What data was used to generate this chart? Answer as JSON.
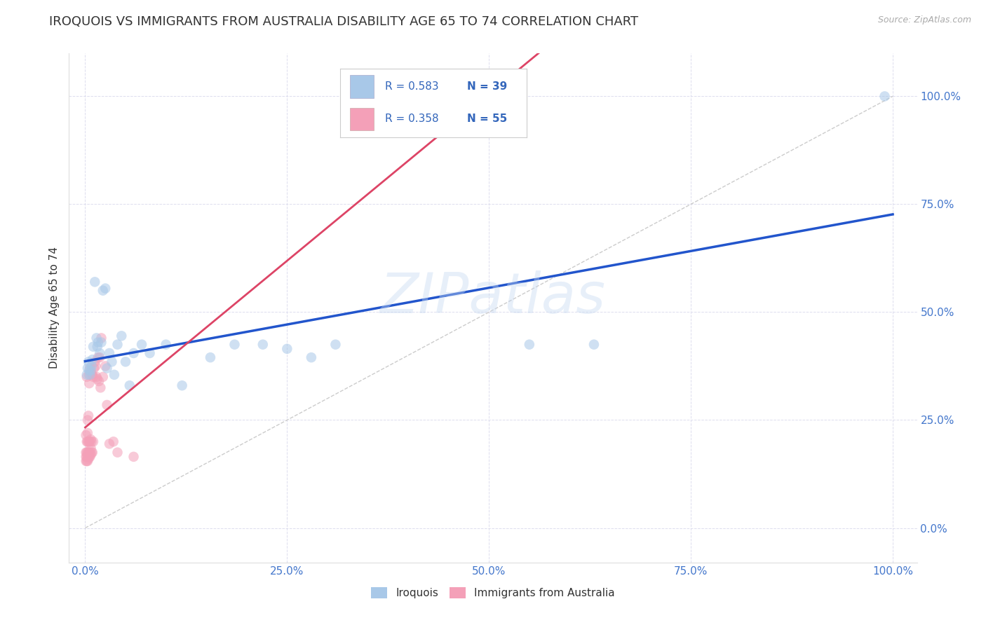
{
  "title": "IROQUOIS VS IMMIGRANTS FROM AUSTRALIA DISABILITY AGE 65 TO 74 CORRELATION CHART",
  "source": "Source: ZipAtlas.com",
  "ylabel": "Disability Age 65 to 74",
  "background_color": "#ffffff",
  "watermark": "ZIPatlas",
  "legend_label1": "Iroquois",
  "legend_label2": "Immigrants from Australia",
  "iroquois_color": "#a8c8e8",
  "immigrants_color": "#f4a0b8",
  "line1_color": "#2255cc",
  "line2_color": "#dd4466",
  "diag_color": "#cccccc",
  "iroquois_x": [
    0.002,
    0.003,
    0.004,
    0.005,
    0.006,
    0.007,
    0.008,
    0.009,
    0.01,
    0.012,
    0.014,
    0.015,
    0.016,
    0.018,
    0.02,
    0.022,
    0.025,
    0.027,
    0.03,
    0.033,
    0.036,
    0.04,
    0.045,
    0.05,
    0.055,
    0.06,
    0.07,
    0.08,
    0.1,
    0.12,
    0.155,
    0.185,
    0.22,
    0.25,
    0.28,
    0.31,
    0.55,
    0.63,
    0.99
  ],
  "iroquois_y": [
    0.355,
    0.37,
    0.385,
    0.365,
    0.355,
    0.365,
    0.375,
    0.39,
    0.42,
    0.57,
    0.44,
    0.42,
    0.43,
    0.405,
    0.43,
    0.55,
    0.555,
    0.37,
    0.405,
    0.385,
    0.355,
    0.425,
    0.445,
    0.385,
    0.33,
    0.405,
    0.425,
    0.405,
    0.425,
    0.33,
    0.395,
    0.425,
    0.425,
    0.415,
    0.395,
    0.425,
    0.425,
    0.425,
    1.0
  ],
  "immigrants_x": [
    0.001,
    0.001,
    0.001,
    0.001,
    0.002,
    0.002,
    0.002,
    0.002,
    0.002,
    0.003,
    0.003,
    0.003,
    0.003,
    0.003,
    0.003,
    0.004,
    0.004,
    0.004,
    0.004,
    0.005,
    0.005,
    0.005,
    0.005,
    0.005,
    0.006,
    0.006,
    0.006,
    0.006,
    0.007,
    0.007,
    0.007,
    0.007,
    0.008,
    0.008,
    0.009,
    0.009,
    0.01,
    0.01,
    0.011,
    0.012,
    0.013,
    0.014,
    0.015,
    0.016,
    0.017,
    0.018,
    0.019,
    0.02,
    0.022,
    0.025,
    0.027,
    0.03,
    0.035,
    0.04,
    0.06
  ],
  "immigrants_y": [
    0.155,
    0.165,
    0.175,
    0.215,
    0.155,
    0.165,
    0.175,
    0.2,
    0.35,
    0.155,
    0.165,
    0.175,
    0.2,
    0.22,
    0.25,
    0.16,
    0.175,
    0.2,
    0.26,
    0.165,
    0.175,
    0.2,
    0.335,
    0.355,
    0.165,
    0.175,
    0.2,
    0.37,
    0.17,
    0.185,
    0.205,
    0.36,
    0.175,
    0.2,
    0.175,
    0.355,
    0.2,
    0.35,
    0.37,
    0.385,
    0.375,
    0.35,
    0.345,
    0.395,
    0.34,
    0.395,
    0.325,
    0.44,
    0.35,
    0.375,
    0.285,
    0.195,
    0.2,
    0.175,
    0.165
  ],
  "xlim": [
    -0.02,
    1.03
  ],
  "ylim": [
    -0.08,
    1.1
  ],
  "xtick_positions": [
    0.0,
    0.25,
    0.5,
    0.75,
    1.0
  ],
  "xticklabels": [
    "0.0%",
    "25.0%",
    "50.0%",
    "75.0%",
    "100.0%"
  ],
  "ytick_positions": [
    0.0,
    0.25,
    0.5,
    0.75,
    1.0
  ],
  "yticklabels_right": [
    "0.0%",
    "25.0%",
    "50.0%",
    "75.0%",
    "100.0%"
  ],
  "grid_color": "#ddddee",
  "marker_size": 110,
  "marker_alpha": 0.55,
  "title_fontsize": 13,
  "tick_fontsize": 11,
  "tick_color": "#4477cc",
  "legend_color": "#3366bb"
}
